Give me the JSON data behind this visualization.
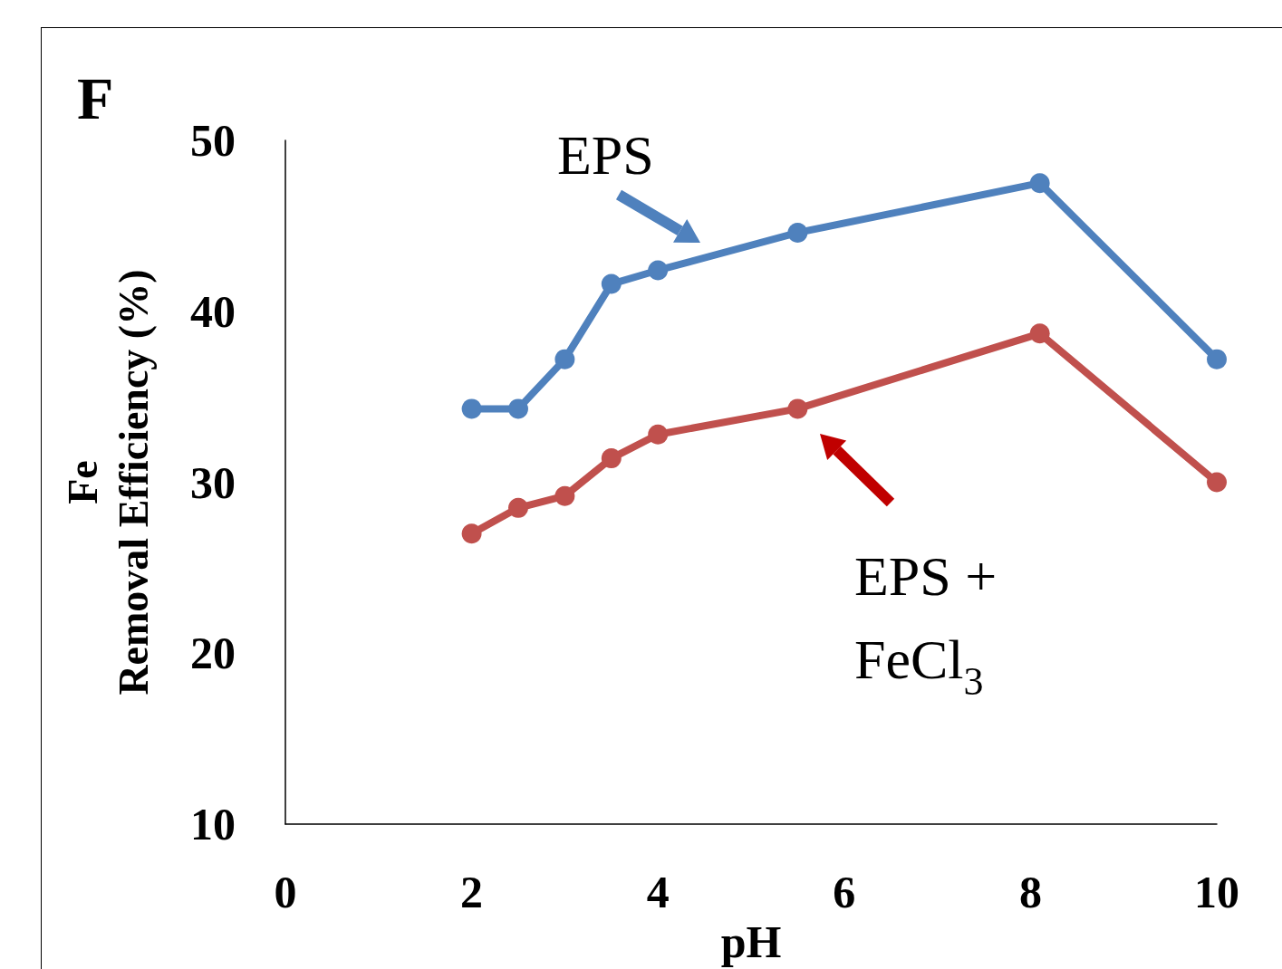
{
  "chart_data": {
    "type": "line",
    "title": "F",
    "xlabel": "pH",
    "ylabel": "Fe\nRemoval Efficiency (%)",
    "xlim": [
      0,
      10
    ],
    "xticks": [
      0,
      2,
      4,
      6,
      8,
      10
    ],
    "ylim": [
      10,
      50
    ],
    "yticks": [
      10,
      20,
      30,
      40,
      50
    ],
    "grid": false,
    "marker": "circle",
    "line_style": "solid",
    "series": [
      {
        "color": "#4f81bd",
        "x": [
          2,
          2.5,
          3,
          3.5,
          4,
          5.5,
          8.1,
          10
        ],
        "values": [
          34.3,
          34.3,
          37.2,
          41.6,
          42.4,
          44.6,
          47.5,
          37.2
        ]
      },
      {
        "color": "#c0504d",
        "x": [
          2,
          2.5,
          3,
          3.5,
          4,
          5.5,
          8.1,
          10
        ],
        "values": [
          27.0,
          28.5,
          29.2,
          31.4,
          32.8,
          34.3,
          38.7,
          30.0
        ]
      }
    ],
    "annotations": [
      "EPS",
      "EPS + \nFeCl$_{3}$"
    ]
  }
}
